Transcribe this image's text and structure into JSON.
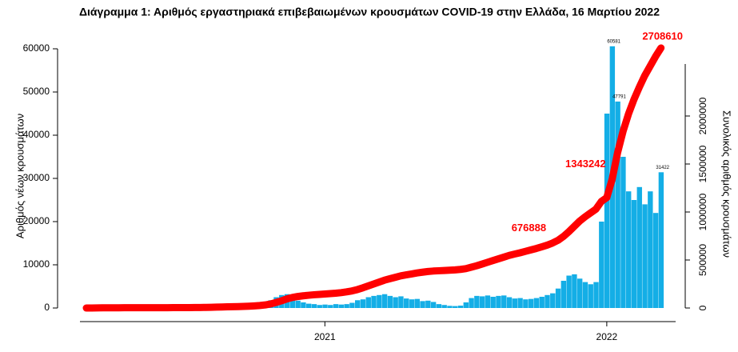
{
  "chart_data": {
    "type": "bar",
    "title": "Διάγραμμα 1: Αριθμός εργαστηριακά επιβεβαιωμένων κρουσμάτων COVID-19 στην Ελλάδα, 16 Μαρτίου 2022",
    "y_label": "Αριθμός νέων κρουσμάτων",
    "y2_label": "Συνολικός αριθμός κρουσμάτων",
    "categories": [
      null,
      null,
      null,
      null,
      null,
      null,
      null,
      null,
      null,
      null,
      null,
      null,
      null,
      null,
      null,
      null,
      null,
      null,
      null,
      null,
      null,
      null,
      null,
      null,
      null,
      null,
      null,
      null,
      null,
      null,
      null,
      null,
      null,
      null,
      null,
      null,
      null,
      null,
      null,
      null,
      null,
      null,
      null,
      null,
      "2021",
      null,
      null,
      null,
      null,
      null,
      null,
      null,
      null,
      null,
      null,
      null,
      null,
      null,
      null,
      null,
      null,
      null,
      null,
      null,
      null,
      null,
      null,
      null,
      null,
      null,
      null,
      null,
      null,
      null,
      null,
      null,
      null,
      null,
      null,
      null,
      null,
      null,
      null,
      null,
      null,
      null,
      null,
      null,
      null,
      null,
      null,
      null,
      null,
      null,
      null,
      null,
      "2022",
      null,
      null,
      null,
      null,
      null,
      null,
      null,
      null,
      null,
      null
    ],
    "series": [
      {
        "color": "#14aee6",
        "values": [
          10,
          30,
          60,
          80,
          90,
          60,
          40,
          20,
          15,
          10,
          10,
          10,
          8,
          10,
          12,
          15,
          20,
          25,
          30,
          40,
          60,
          90,
          130,
          170,
          200,
          220,
          200,
          230,
          250,
          300,
          350,
          450,
          700,
          1100,
          1800,
          2500,
          3000,
          3200,
          2500,
          1700,
          1300,
          1000,
          900,
          700,
          800,
          700,
          900,
          800,
          900,
          1200,
          1800,
          2000,
          2500,
          2800,
          3000,
          3200,
          2800,
          2500,
          2700,
          2200,
          2000,
          2100,
          1600,
          1700,
          1400,
          900,
          700,
          500,
          450,
          550,
          1300,
          2300,
          2800,
          2700,
          2900,
          2600,
          2800,
          2900,
          2500,
          2200,
          2300,
          2000,
          2100,
          2300,
          2600,
          3000,
          3400,
          4500,
          6300,
          7500,
          7800,
          6800,
          6000,
          5500,
          6000,
          20000,
          45000,
          60581,
          47791,
          35000,
          27000,
          25000,
          28000,
          24000,
          27000,
          22000,
          31422
        ],
        "value_labels": [
          null,
          null,
          null,
          null,
          null,
          null,
          null,
          null,
          null,
          null,
          null,
          null,
          null,
          null,
          null,
          null,
          null,
          null,
          null,
          null,
          null,
          null,
          null,
          null,
          null,
          null,
          null,
          null,
          null,
          null,
          null,
          null,
          null,
          null,
          null,
          null,
          null,
          null,
          null,
          null,
          null,
          null,
          null,
          null,
          null,
          null,
          null,
          null,
          null,
          null,
          null,
          null,
          null,
          null,
          null,
          null,
          null,
          null,
          null,
          null,
          null,
          null,
          null,
          null,
          null,
          null,
          null,
          null,
          null,
          null,
          null,
          null,
          null,
          null,
          null,
          null,
          null,
          null,
          null,
          null,
          null,
          null,
          null,
          null,
          null,
          null,
          null,
          null,
          null,
          null,
          null,
          null,
          null,
          null,
          null,
          null,
          null,
          "60581",
          "47791",
          null,
          null,
          null,
          null,
          null,
          null,
          null,
          "31422"
        ]
      },
      {
        "type": "line",
        "axis": "y2",
        "color": "#ff0000",
        "values": [
          100,
          500,
          1000,
          1700,
          2200,
          2500,
          2600,
          2800,
          2900,
          3000,
          3100,
          3200,
          3300,
          3400,
          3500,
          3600,
          3800,
          4000,
          4300,
          4600,
          5000,
          5600,
          6500,
          7500,
          9000,
          10500,
          12000,
          13500,
          15000,
          16500,
          19000,
          22000,
          26000,
          32000,
          42000,
          58000,
          75000,
          95000,
          110000,
          120000,
          127000,
          133000,
          138000,
          142000,
          146000,
          150000,
          154000,
          160000,
          168000,
          178000,
          192000,
          210000,
          230000,
          250000,
          270000,
          290000,
          305000,
          320000,
          335000,
          345000,
          355000,
          365000,
          373000,
          380000,
          385000,
          388000,
          391000,
          394000,
          397000,
          402000,
          410000,
          425000,
          440000,
          458000,
          476000,
          494000,
          512000,
          530000,
          548000,
          562000,
          575000,
          590000,
          605000,
          620000,
          637000,
          655000,
          676888,
          705000,
          745000,
          795000,
          850000,
          905000,
          950000,
          990000,
          1030000,
          1110000,
          1150000,
          1343242,
          1620000,
          1840000,
          2020000,
          2170000,
          2300000,
          2420000,
          2520000,
          2620000,
          2708610
        ],
        "value_labels": [
          null,
          null,
          null,
          null,
          null,
          null,
          null,
          null,
          null,
          null,
          null,
          null,
          null,
          null,
          null,
          null,
          null,
          null,
          null,
          null,
          null,
          null,
          null,
          null,
          null,
          null,
          null,
          null,
          null,
          null,
          null,
          null,
          null,
          null,
          null,
          null,
          null,
          null,
          null,
          null,
          null,
          null,
          null,
          null,
          null,
          null,
          null,
          null,
          null,
          null,
          null,
          null,
          null,
          null,
          null,
          null,
          null,
          null,
          null,
          null,
          null,
          null,
          null,
          null,
          null,
          null,
          null,
          null,
          null,
          null,
          null,
          null,
          null,
          null,
          null,
          null,
          null,
          null,
          null,
          null,
          null,
          null,
          null,
          null,
          null,
          null,
          "676888",
          null,
          null,
          null,
          null,
          null,
          null,
          null,
          null,
          null,
          null,
          "1343242",
          null,
          null,
          null,
          null,
          null,
          null,
          null,
          null,
          "2708610"
        ]
      }
    ],
    "ylim": [
      0,
      60000
    ],
    "yticks": [
      0,
      10000,
      20000,
      30000,
      40000,
      50000,
      60000
    ],
    "y2lim": [
      0,
      2700000
    ],
    "y2ticks": [
      0,
      500000,
      1000000,
      1500000,
      2000000
    ]
  }
}
